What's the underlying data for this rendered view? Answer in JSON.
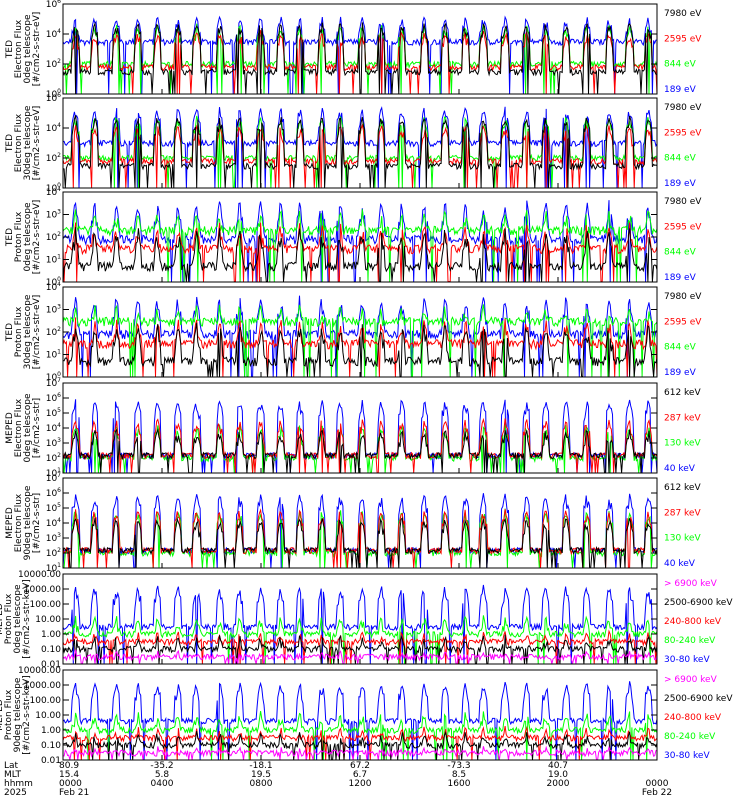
{
  "colors": {
    "black": "#000000",
    "blue": "#0000ff",
    "red": "#ff0000",
    "green": "#00ff00",
    "magenta": "#ff00ff"
  },
  "chart_data": [
    {
      "type": "line",
      "ylabel_lines": [
        "TED",
        "Electron Flux",
        "0deg telescope",
        "[#/cm2-s-str-eV]"
      ],
      "y_scale": "log",
      "ylim": [
        1,
        1000000
      ],
      "tick_labels": [
        "10^0",
        "10^2",
        "10^4",
        "10^6"
      ],
      "series": [
        {
          "name": "7980 eV",
          "color": "#000000",
          "baseline": 30,
          "peaks": 80000
        },
        {
          "name": "2595 eV",
          "color": "#ff0000",
          "baseline": 60,
          "peaks": 20000
        },
        {
          "name": "844 eV",
          "color": "#00ff00",
          "baseline": 100,
          "peaks": 50000
        },
        {
          "name": "189 eV",
          "color": "#0000ff",
          "baseline": 3000,
          "peaks": 200000
        }
      ]
    },
    {
      "type": "line",
      "ylabel_lines": [
        "TED",
        "Electron Flux",
        "30deg telescope",
        "[#/cm2-s-str-eV]"
      ],
      "y_scale": "log",
      "ylim": [
        1,
        1000000
      ],
      "tick_labels": [
        "10^0",
        "10^2",
        "10^4",
        "10^6"
      ],
      "series": [
        {
          "name": "7980 eV",
          "color": "#000000",
          "baseline": 30,
          "peaks": 80000
        },
        {
          "name": "2595 eV",
          "color": "#ff0000",
          "baseline": 60,
          "peaks": 20000
        },
        {
          "name": "844 eV",
          "color": "#00ff00",
          "baseline": 100,
          "peaks": 80000
        },
        {
          "name": "189 eV",
          "color": "#0000ff",
          "baseline": 1000,
          "peaks": 300000
        }
      ]
    },
    {
      "type": "line",
      "ylabel_lines": [
        "TED",
        "Proton Flux",
        "0deg telescope",
        "[#/cm2-s-str-eV]"
      ],
      "y_scale": "log",
      "ylim": [
        1,
        10000
      ],
      "tick_labels": [
        "10^0",
        "10^1",
        "10^2",
        "10^3",
        "10^4"
      ],
      "series": [
        {
          "name": "7980 eV",
          "color": "#000000",
          "baseline": 5,
          "peaks": 300
        },
        {
          "name": "2595 eV",
          "color": "#ff0000",
          "baseline": 30,
          "peaks": 500
        },
        {
          "name": "844 eV",
          "color": "#00ff00",
          "baseline": 200,
          "peaks": 2000
        },
        {
          "name": "189 eV",
          "color": "#0000ff",
          "baseline": 80,
          "peaks": 5000
        }
      ]
    },
    {
      "type": "line",
      "ylabel_lines": [
        "TED",
        "Proton Flux",
        "30deg telescope",
        "[#/cm2-s-str-eV]"
      ],
      "y_scale": "log",
      "ylim": [
        1,
        10000
      ],
      "tick_labels": [
        "10^0",
        "10^1",
        "10^2",
        "10^3",
        "10^4"
      ],
      "series": [
        {
          "name": "7980 eV",
          "color": "#000000",
          "baseline": 5,
          "peaks": 300
        },
        {
          "name": "2595 eV",
          "color": "#ff0000",
          "baseline": 30,
          "peaks": 500
        },
        {
          "name": "844 eV",
          "color": "#00ff00",
          "baseline": 300,
          "peaks": 2000
        },
        {
          "name": "189 eV",
          "color": "#0000ff",
          "baseline": 80,
          "peaks": 5000
        }
      ]
    },
    {
      "type": "line",
      "ylabel_lines": [
        "MEPED",
        "Electron Flux",
        "0deg telescope",
        "[#/cm2-s-str]"
      ],
      "y_scale": "log",
      "ylim": [
        10,
        10000000
      ],
      "tick_labels": [
        "10^1",
        "10^2",
        "10^3",
        "10^4",
        "10^5",
        "10^6",
        "10^7"
      ],
      "series": [
        {
          "name": "612 keV",
          "color": "#000000",
          "baseline": 150,
          "peaks": 10000
        },
        {
          "name": "287 keV",
          "color": "#ff0000",
          "baseline": 150,
          "peaks": 50000
        },
        {
          "name": "130 keV",
          "color": "#00ff00",
          "baseline": 100,
          "peaks": 20000
        },
        {
          "name": "40 keV",
          "color": "#0000ff",
          "baseline": 150,
          "peaks": 1000000
        }
      ]
    },
    {
      "type": "line",
      "ylabel_lines": [
        "MEPED",
        "Electron Flux",
        "90deg telescope",
        "[#/cm2-s-str]"
      ],
      "y_scale": "log",
      "ylim": [
        10,
        10000000
      ],
      "tick_labels": [
        "10^1",
        "10^2",
        "10^3",
        "10^4",
        "10^5",
        "10^6",
        "10^7"
      ],
      "series": [
        {
          "name": "612 keV",
          "color": "#000000",
          "baseline": 150,
          "peaks": 30000
        },
        {
          "name": "287 keV",
          "color": "#ff0000",
          "baseline": 150,
          "peaks": 100000
        },
        {
          "name": "130 keV",
          "color": "#00ff00",
          "baseline": 100,
          "peaks": 100000
        },
        {
          "name": "40 keV",
          "color": "#0000ff",
          "baseline": 150,
          "peaks": 1000000
        }
      ]
    },
    {
      "type": "line",
      "ylabel_lines": [
        "MEPED",
        "Proton Flux",
        "0deg telescope",
        "[#/cm2-s-str-keV]"
      ],
      "y_scale": "log",
      "ylim": [
        0.01,
        10000
      ],
      "tick_labels": [
        "0.01",
        "0.10",
        "1.00",
        "10.00",
        "100.00",
        "1000.00",
        "10000.00"
      ],
      "series": [
        {
          "name": "> 6900 keV",
          "color": "#ff00ff",
          "baseline": 0.03,
          "peaks": 0.1
        },
        {
          "name": "2500-6900 keV",
          "color": "#000000",
          "baseline": 0.1,
          "peaks": 1
        },
        {
          "name": "240-800 keV",
          "color": "#ff0000",
          "baseline": 0.3,
          "peaks": 2
        },
        {
          "name": "80-240 keV",
          "color": "#00ff00",
          "baseline": 1,
          "peaks": 20
        },
        {
          "name": "30-80 keV",
          "color": "#0000ff",
          "baseline": 3,
          "peaks": 2000
        }
      ]
    },
    {
      "type": "line",
      "ylabel_lines": [
        "MEPED",
        "Proton Flux",
        "90deg telescope",
        "[#/cm2-s-str-keV]"
      ],
      "y_scale": "log",
      "ylim": [
        0.01,
        10000
      ],
      "tick_labels": [
        "0.01",
        "0.10",
        "1.00",
        "10.00",
        "100.00",
        "1000.00",
        "10000.00"
      ],
      "series": [
        {
          "name": "> 6900 keV",
          "color": "#ff00ff",
          "baseline": 0.03,
          "peaks": 0.1
        },
        {
          "name": "2500-6900 keV",
          "color": "#000000",
          "baseline": 0.1,
          "peaks": 1
        },
        {
          "name": "240-800 keV",
          "color": "#ff0000",
          "baseline": 0.3,
          "peaks": 2
        },
        {
          "name": "80-240 keV",
          "color": "#00ff00",
          "baseline": 1,
          "peaks": 20
        },
        {
          "name": "30-80 keV",
          "color": "#0000ff",
          "baseline": 4,
          "peaks": 2000
        }
      ]
    }
  ],
  "x_axis": {
    "row_labels": [
      "Lat",
      "MLT",
      "hhmm",
      "2025"
    ],
    "columns": [
      [
        "80.9",
        "15.4",
        "0000",
        "Feb 21"
      ],
      [
        "-35.2",
        "5.8",
        "0400",
        ""
      ],
      [
        "-18.1",
        "19.5",
        "0800",
        ""
      ],
      [
        "67.2",
        "6.7",
        "1200",
        ""
      ],
      [
        "-73.3",
        "8.5",
        "1600",
        ""
      ],
      [
        "40.7",
        "19.0",
        "2000",
        ""
      ],
      [
        "",
        "",
        "0000",
        "Feb 22"
      ]
    ]
  }
}
